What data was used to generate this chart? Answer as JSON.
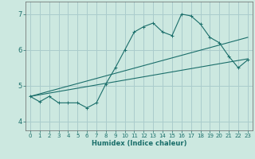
{
  "xlabel": "Humidex (Indice chaleur)",
  "bg_color": "#cce8e0",
  "grid_color": "#aacccc",
  "line_color": "#1a6e6a",
  "xlim": [
    -0.5,
    23.5
  ],
  "ylim": [
    3.75,
    7.35
  ],
  "xticks": [
    0,
    1,
    2,
    3,
    4,
    5,
    6,
    7,
    8,
    9,
    10,
    11,
    12,
    13,
    14,
    15,
    16,
    17,
    18,
    19,
    20,
    21,
    22,
    23
  ],
  "yticks": [
    4,
    5,
    6,
    7
  ],
  "line1_x": [
    0,
    1,
    2,
    3,
    4,
    5,
    6,
    7,
    8,
    9,
    10,
    11,
    12,
    13,
    14,
    15,
    16,
    17,
    18,
    19,
    20,
    21,
    22,
    23
  ],
  "line1_y": [
    4.7,
    4.55,
    4.7,
    4.52,
    4.52,
    4.52,
    4.38,
    4.52,
    5.05,
    5.5,
    6.0,
    6.5,
    6.65,
    6.75,
    6.5,
    6.4,
    7.0,
    6.95,
    6.72,
    6.35,
    6.2,
    5.82,
    5.5,
    5.72
  ],
  "line2_x": [
    0,
    23
  ],
  "line2_y": [
    4.7,
    6.35
  ],
  "line3_x": [
    0,
    23
  ],
  "line3_y": [
    4.7,
    5.75
  ]
}
